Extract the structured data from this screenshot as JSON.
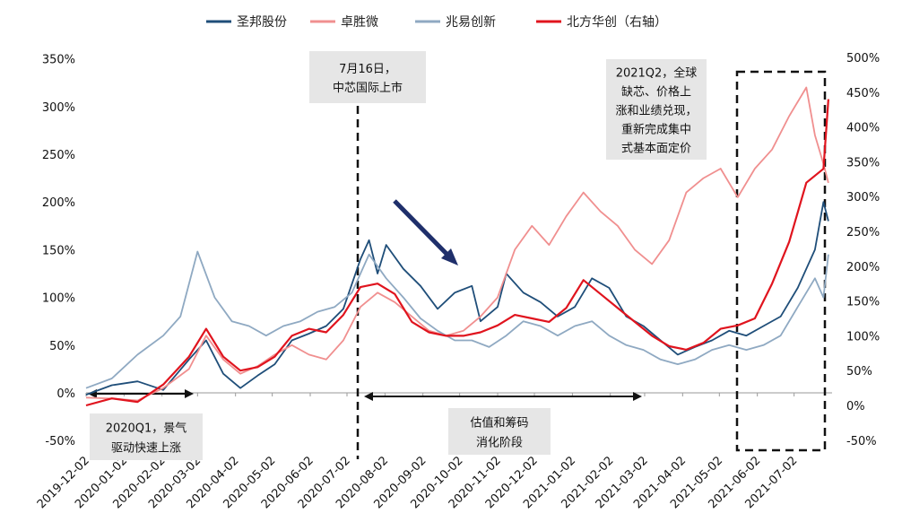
{
  "chart_data": {
    "type": "line",
    "title": "",
    "x_ticks": [
      "2019-12-02",
      "2020-01-02",
      "2020-02-02",
      "2020-03-02",
      "2020-04-02",
      "2020-05-02",
      "2020-06-02",
      "2020-07-02",
      "2020-08-02",
      "2020-09-02",
      "2020-10-02",
      "2020-11-02",
      "2020-12-02",
      "2021-01-02",
      "2021-02-02",
      "2021-03-02",
      "2021-04-02",
      "2021-05-02",
      "2021-06-02",
      "2021-07-02"
    ],
    "y_left": {
      "min": -50,
      "max": 350,
      "step": 50,
      "unit": "%"
    },
    "y_right": {
      "min": -50,
      "max": 500,
      "step": 50,
      "unit": "%"
    },
    "x_extent": [
      "2019-12-02",
      "2021-08-02"
    ],
    "series": [
      {
        "name": "圣邦股份",
        "color": "#1f4e79",
        "axis": "left",
        "points": [
          [
            "2019-12-02",
            -2
          ],
          [
            "2019-12-23",
            8
          ],
          [
            "2020-01-13",
            12
          ],
          [
            "2020-02-03",
            3
          ],
          [
            "2020-02-24",
            35
          ],
          [
            "2020-03-09",
            55
          ],
          [
            "2020-03-23",
            20
          ],
          [
            "2020-04-06",
            5
          ],
          [
            "2020-04-20",
            18
          ],
          [
            "2020-05-04",
            30
          ],
          [
            "2020-05-18",
            55
          ],
          [
            "2020-06-01",
            62
          ],
          [
            "2020-06-15",
            70
          ],
          [
            "2020-06-29",
            88
          ],
          [
            "2020-07-13",
            140
          ],
          [
            "2020-07-20",
            160
          ],
          [
            "2020-07-27",
            125
          ],
          [
            "2020-08-03",
            155
          ],
          [
            "2020-08-17",
            130
          ],
          [
            "2020-08-31",
            112
          ],
          [
            "2020-09-14",
            88
          ],
          [
            "2020-09-28",
            105
          ],
          [
            "2020-10-12",
            112
          ],
          [
            "2020-10-19",
            75
          ],
          [
            "2020-11-02",
            90
          ],
          [
            "2020-11-09",
            125
          ],
          [
            "2020-11-23",
            105
          ],
          [
            "2020-12-07",
            95
          ],
          [
            "2020-12-21",
            80
          ],
          [
            "2021-01-04",
            90
          ],
          [
            "2021-01-18",
            120
          ],
          [
            "2021-02-01",
            110
          ],
          [
            "2021-02-15",
            80
          ],
          [
            "2021-03-01",
            70
          ],
          [
            "2021-03-15",
            55
          ],
          [
            "2021-03-29",
            40
          ],
          [
            "2021-04-12",
            48
          ],
          [
            "2021-04-26",
            55
          ],
          [
            "2021-05-10",
            65
          ],
          [
            "2021-05-24",
            60
          ],
          [
            "2021-06-07",
            70
          ],
          [
            "2021-06-21",
            80
          ],
          [
            "2021-07-05",
            110
          ],
          [
            "2021-07-19",
            150
          ],
          [
            "2021-07-26",
            200
          ],
          [
            "2021-07-30",
            180
          ]
        ]
      },
      {
        "name": "卓胜微",
        "color": "#f08f8f",
        "axis": "left",
        "points": [
          [
            "2019-12-02",
            -5
          ],
          [
            "2019-12-23",
            -6
          ],
          [
            "2020-01-13",
            -8
          ],
          [
            "2020-02-03",
            5
          ],
          [
            "2020-02-24",
            25
          ],
          [
            "2020-03-09",
            60
          ],
          [
            "2020-03-23",
            35
          ],
          [
            "2020-04-06",
            20
          ],
          [
            "2020-04-20",
            28
          ],
          [
            "2020-05-04",
            40
          ],
          [
            "2020-05-18",
            50
          ],
          [
            "2020-06-01",
            40
          ],
          [
            "2020-06-15",
            35
          ],
          [
            "2020-06-29",
            55
          ],
          [
            "2020-07-13",
            90
          ],
          [
            "2020-07-27",
            105
          ],
          [
            "2020-08-10",
            95
          ],
          [
            "2020-08-24",
            80
          ],
          [
            "2020-09-07",
            65
          ],
          [
            "2020-09-21",
            60
          ],
          [
            "2020-10-05",
            65
          ],
          [
            "2020-10-19",
            80
          ],
          [
            "2020-11-02",
            100
          ],
          [
            "2020-11-16",
            150
          ],
          [
            "2020-11-30",
            175
          ],
          [
            "2020-12-14",
            155
          ],
          [
            "2020-12-28",
            185
          ],
          [
            "2021-01-11",
            210
          ],
          [
            "2021-01-25",
            190
          ],
          [
            "2021-02-08",
            175
          ],
          [
            "2021-02-22",
            150
          ],
          [
            "2021-03-08",
            135
          ],
          [
            "2021-03-22",
            160
          ],
          [
            "2021-04-05",
            210
          ],
          [
            "2021-04-19",
            225
          ],
          [
            "2021-05-03",
            235
          ],
          [
            "2021-05-17",
            205
          ],
          [
            "2021-05-31",
            235
          ],
          [
            "2021-06-14",
            255
          ],
          [
            "2021-06-28",
            290
          ],
          [
            "2021-07-12",
            320
          ],
          [
            "2021-07-19",
            270
          ],
          [
            "2021-07-26",
            240
          ],
          [
            "2021-07-30",
            220
          ]
        ]
      },
      {
        "name": "兆易创新",
        "color": "#8fa9c2",
        "axis": "left",
        "points": [
          [
            "2019-12-02",
            5
          ],
          [
            "2019-12-23",
            15
          ],
          [
            "2020-01-13",
            40
          ],
          [
            "2020-02-03",
            60
          ],
          [
            "2020-02-17",
            80
          ],
          [
            "2020-03-02",
            148
          ],
          [
            "2020-03-16",
            100
          ],
          [
            "2020-03-30",
            75
          ],
          [
            "2020-04-13",
            70
          ],
          [
            "2020-04-27",
            60
          ],
          [
            "2020-05-11",
            70
          ],
          [
            "2020-05-25",
            75
          ],
          [
            "2020-06-08",
            85
          ],
          [
            "2020-06-22",
            90
          ],
          [
            "2020-07-06",
            105
          ],
          [
            "2020-07-20",
            145
          ],
          [
            "2020-08-03",
            120
          ],
          [
            "2020-08-17",
            100
          ],
          [
            "2020-08-31",
            78
          ],
          [
            "2020-09-14",
            65
          ],
          [
            "2020-09-28",
            55
          ],
          [
            "2020-10-12",
            55
          ],
          [
            "2020-10-26",
            48
          ],
          [
            "2020-11-09",
            60
          ],
          [
            "2020-11-23",
            75
          ],
          [
            "2020-12-07",
            70
          ],
          [
            "2020-12-21",
            60
          ],
          [
            "2021-01-04",
            70
          ],
          [
            "2021-01-18",
            75
          ],
          [
            "2021-02-01",
            60
          ],
          [
            "2021-02-15",
            50
          ],
          [
            "2021-03-01",
            45
          ],
          [
            "2021-03-15",
            35
          ],
          [
            "2021-03-29",
            30
          ],
          [
            "2021-04-12",
            35
          ],
          [
            "2021-04-26",
            45
          ],
          [
            "2021-05-10",
            50
          ],
          [
            "2021-05-24",
            45
          ],
          [
            "2021-06-07",
            50
          ],
          [
            "2021-06-21",
            60
          ],
          [
            "2021-07-05",
            90
          ],
          [
            "2021-07-19",
            120
          ],
          [
            "2021-07-26",
            100
          ],
          [
            "2021-07-30",
            145
          ]
        ]
      },
      {
        "name": "北方华创（右轴）",
        "color": "#e0141e",
        "axis": "right",
        "points": [
          [
            "2019-12-02",
            0
          ],
          [
            "2019-12-23",
            10
          ],
          [
            "2020-01-13",
            5
          ],
          [
            "2020-02-03",
            30
          ],
          [
            "2020-02-24",
            70
          ],
          [
            "2020-03-09",
            110
          ],
          [
            "2020-03-23",
            70
          ],
          [
            "2020-04-06",
            50
          ],
          [
            "2020-04-20",
            55
          ],
          [
            "2020-05-04",
            70
          ],
          [
            "2020-05-18",
            100
          ],
          [
            "2020-06-01",
            110
          ],
          [
            "2020-06-15",
            105
          ],
          [
            "2020-06-29",
            130
          ],
          [
            "2020-07-13",
            170
          ],
          [
            "2020-07-27",
            175
          ],
          [
            "2020-08-10",
            160
          ],
          [
            "2020-08-24",
            120
          ],
          [
            "2020-09-07",
            105
          ],
          [
            "2020-09-21",
            100
          ],
          [
            "2020-10-05",
            100
          ],
          [
            "2020-10-19",
            105
          ],
          [
            "2020-11-02",
            115
          ],
          [
            "2020-11-16",
            130
          ],
          [
            "2020-11-30",
            125
          ],
          [
            "2020-12-14",
            120
          ],
          [
            "2020-12-28",
            140
          ],
          [
            "2021-01-11",
            180
          ],
          [
            "2021-01-25",
            160
          ],
          [
            "2021-02-08",
            140
          ],
          [
            "2021-02-22",
            120
          ],
          [
            "2021-03-08",
            100
          ],
          [
            "2021-03-22",
            85
          ],
          [
            "2021-04-05",
            80
          ],
          [
            "2021-04-19",
            90
          ],
          [
            "2021-05-03",
            110
          ],
          [
            "2021-05-17",
            115
          ],
          [
            "2021-05-31",
            125
          ],
          [
            "2021-06-14",
            175
          ],
          [
            "2021-06-28",
            235
          ],
          [
            "2021-07-12",
            320
          ],
          [
            "2021-07-26",
            340
          ],
          [
            "2021-07-30",
            440
          ]
        ]
      }
    ],
    "annotations": [
      {
        "lines": [
          "7月16日，",
          "中芯国际上市"
        ]
      },
      {
        "lines": [
          "2021Q2，全球",
          "缺芯、价格上",
          "涨和业绩兑现，",
          "重新完成集中",
          "式基本面定价"
        ]
      },
      {
        "lines": [
          "2020Q1，景气",
          "驱动快速上涨"
        ]
      },
      {
        "lines": [
          "估值和筹码",
          "消化阶段"
        ]
      }
    ],
    "legend_position": "top",
    "grid": false
  }
}
